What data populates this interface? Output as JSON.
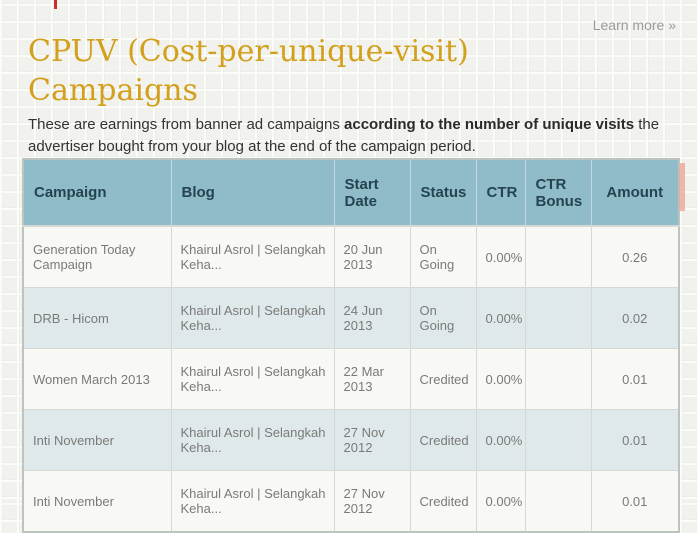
{
  "page": {
    "accent_gold": "#d2a01c",
    "header_bg": "#90bcc9",
    "row_alt_bg": "#dfe9eb"
  },
  "header": {
    "title_line1": "CPUV (Cost-per-unique-visit)",
    "title_line2": "Campaigns",
    "learn_more_label": "Learn more »"
  },
  "description": {
    "before": "These are earnings from banner ad campaigns ",
    "bold": "according to the number of unique visits",
    "after": " the advertiser bought from your blog at the end of the campaign period."
  },
  "table": {
    "columns": {
      "campaign": "Campaign",
      "blog": "Blog",
      "start_date": "Start Date",
      "status": "Status",
      "ctr": "CTR",
      "ctr_bonus": "CTR Bonus",
      "amount": "Amount"
    },
    "rows": [
      {
        "campaign": "Generation Today Campaign",
        "blog": "Khairul Asrol | Selangkah Keha...",
        "start_date": "20 Jun 2013",
        "status": "On Going",
        "ctr": "0.00%",
        "ctr_bonus": "",
        "amount": "0.26"
      },
      {
        "campaign": "DRB - Hicom",
        "blog": "Khairul Asrol | Selangkah Keha...",
        "start_date": "24 Jun 2013",
        "status": "On Going",
        "ctr": "0.00%",
        "ctr_bonus": "",
        "amount": "0.02"
      },
      {
        "campaign": "Women March 2013",
        "blog": "Khairul Asrol | Selangkah Keha...",
        "start_date": "22 Mar 2013",
        "status": "Credited",
        "ctr": "0.00%",
        "ctr_bonus": "",
        "amount": "0.01"
      },
      {
        "campaign": "Inti November",
        "blog": "Khairul Asrol | Selangkah Keha...",
        "start_date": "27 Nov 2012",
        "status": "Credited",
        "ctr": "0.00%",
        "ctr_bonus": "",
        "amount": "0.01"
      },
      {
        "campaign": "Inti November",
        "blog": "Khairul Asrol | Selangkah Keha...",
        "start_date": "27 Nov 2012",
        "status": "Credited",
        "ctr": "0.00%",
        "ctr_bonus": "",
        "amount": "0.01"
      }
    ]
  }
}
